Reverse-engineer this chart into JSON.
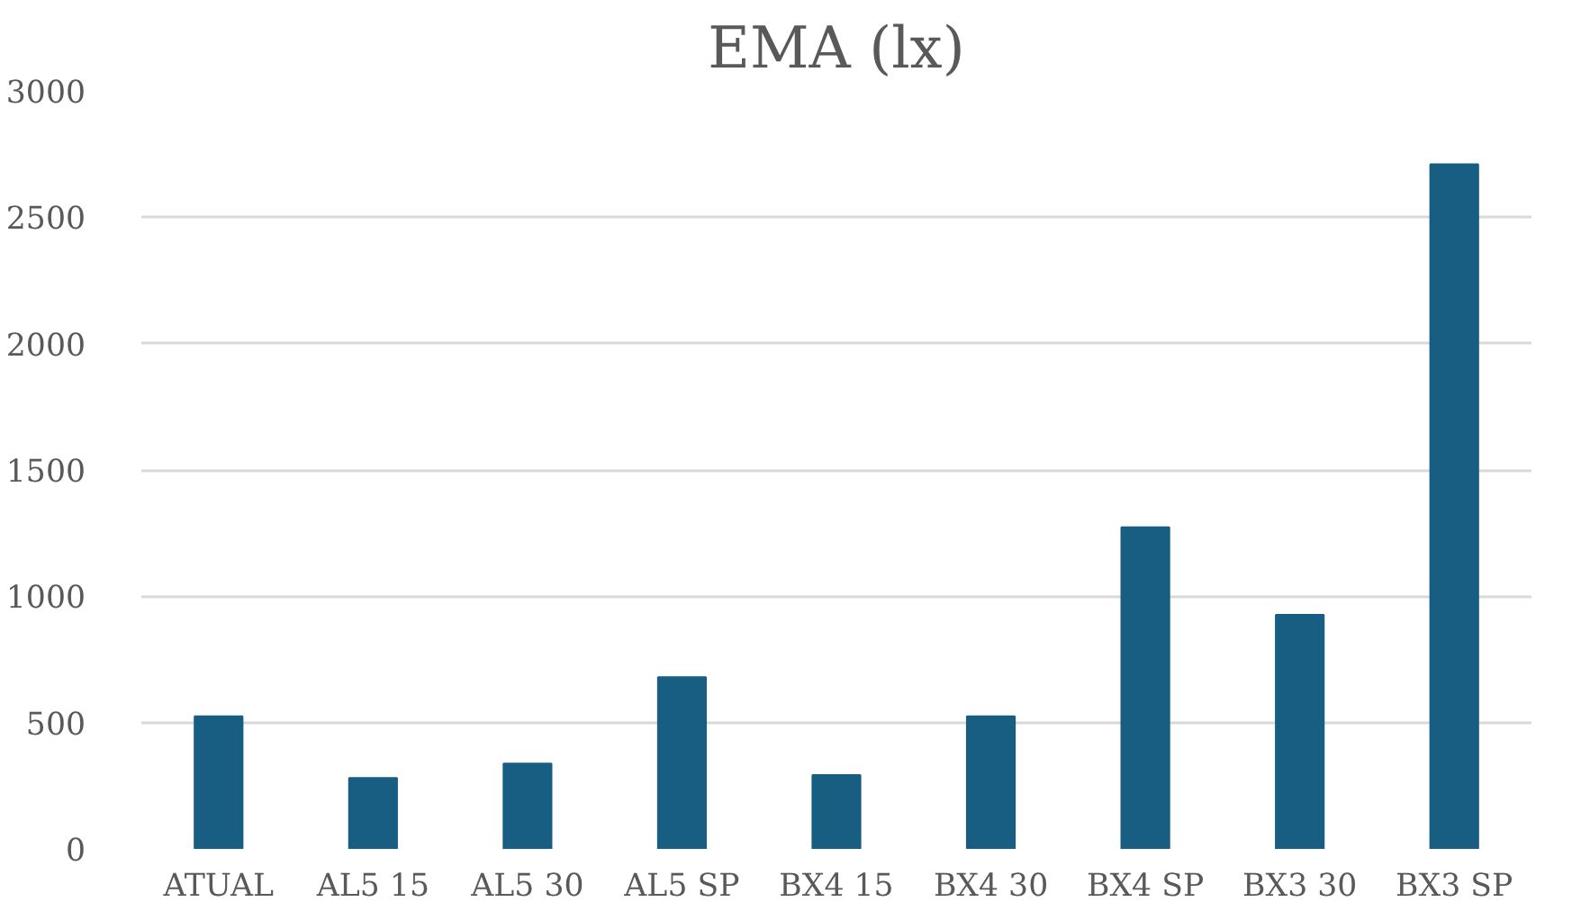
{
  "chart_data": {
    "type": "bar",
    "title": "EMA (lx)",
    "categories": [
      "ATUAL",
      "AL5 15",
      "AL5 30",
      "AL5 SP",
      "BX4 15",
      "BX4 30",
      "BX4 SP",
      "BX3 30",
      "BX3 SP"
    ],
    "values": [
      525,
      281,
      338,
      680,
      292,
      525,
      1273,
      926,
      2710
    ],
    "color": "#175e82",
    "ylim": [
      0,
      3000
    ],
    "yticks": [
      0,
      500,
      1000,
      1500,
      2000,
      2500,
      3000
    ],
    "grid": "y"
  }
}
